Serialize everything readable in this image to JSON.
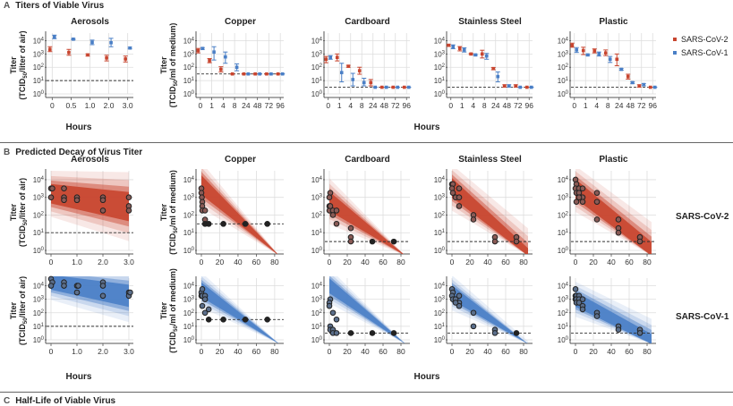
{
  "sections": [
    {
      "letter": "A",
      "title": "Titers of Viable Virus"
    },
    {
      "letter": "B",
      "title": "Predicted Decay of Virus Titer"
    },
    {
      "letter": "C",
      "title": "Half-Life of Viable Virus"
    }
  ],
  "legend": [
    {
      "name": "SARS-CoV-2",
      "color": "#c8452f"
    },
    {
      "name": "SARS-CoV-1",
      "color": "#4a7fc6"
    }
  ],
  "row_labels": [
    "SARS-CoV-2",
    "SARS-CoV-1"
  ],
  "xlabel": "Hours",
  "ytitle_air": "Titer (TCID50/liter of air)",
  "ytitle_medium": "Titer (TCID50/ml of medium)",
  "chart_data": [
    {
      "type": "scatter",
      "panel": "A",
      "title": "Aerosols",
      "xlabel": "Hours",
      "ylabel": "Titer (TCID50/liter of air)",
      "yscale": "log10",
      "ylim": [
        1,
        30000
      ],
      "yticks": [
        "10^0",
        "10^1",
        "10^2",
        "10^3",
        "10^4"
      ],
      "categories": [
        "0",
        "0.5",
        "1.0",
        "2.0",
        "3.0"
      ],
      "detection_limit": 10,
      "series": [
        {
          "name": "SARS-CoV-2",
          "values": [
            2200,
            1300,
            850,
            500,
            420
          ],
          "err_low": [
            1500,
            800,
            700,
            300,
            250
          ],
          "err_high": [
            3500,
            2200,
            1000,
            800,
            700
          ]
        },
        {
          "name": "SARS-CoV-1",
          "values": [
            19000,
            13000,
            7500,
            7000,
            2800
          ],
          "err_low": [
            14000,
            11500,
            5000,
            3500,
            2400
          ],
          "err_high": [
            26000,
            14500,
            11000,
            15000,
            3200
          ]
        }
      ]
    },
    {
      "type": "scatter",
      "panel": "A",
      "title": "Copper",
      "ylabel": "Titer (TCID50/ml of medium)",
      "yscale": "log10",
      "ylim": [
        1,
        30000
      ],
      "yticks": [
        "10^0",
        "10^1",
        "10^2",
        "10^3",
        "10^4"
      ],
      "categories": [
        "0",
        "1",
        "4",
        "8",
        "24",
        "48",
        "72",
        "96"
      ],
      "detection_limit": 31.6,
      "series": [
        {
          "name": "SARS-CoV-2",
          "values": [
            1800,
            320,
            70,
            31.6,
            31.6,
            31.6,
            31.6,
            31.6
          ],
          "err_low": [
            1200,
            220,
            45,
            31.6,
            31.6,
            31.6,
            31.6,
            31.6
          ],
          "err_high": [
            2600,
            450,
            110,
            31.6,
            31.6,
            31.6,
            31.6,
            31.6
          ]
        },
        {
          "name": "SARS-CoV-1",
          "values": [
            2600,
            1400,
            600,
            100,
            31.6,
            31.6,
            31.6,
            31.6
          ],
          "err_low": [
            2200,
            350,
            200,
            55,
            31.6,
            31.6,
            31.6,
            31.6
          ],
          "err_high": [
            3000,
            3500,
            1400,
            180,
            31.6,
            31.6,
            31.6,
            31.6
          ]
        }
      ]
    },
    {
      "type": "scatter",
      "panel": "A",
      "title": "Cardboard",
      "yscale": "log10",
      "ylim": [
        1,
        30000
      ],
      "yticks": [
        "10^0",
        "10^1",
        "10^2",
        "10^3",
        "10^4"
      ],
      "categories": [
        "0",
        "1",
        "4",
        "8",
        "24",
        "48",
        "72",
        "96"
      ],
      "detection_limit": 3.16,
      "series": [
        {
          "name": "SARS-CoV-2",
          "values": [
            400,
            550,
            120,
            55,
            7,
            3.16,
            3.16,
            3.16
          ],
          "err_low": [
            220,
            300,
            100,
            30,
            4,
            3.16,
            3.16,
            3.16
          ],
          "err_high": [
            650,
            1000,
            140,
            100,
            12,
            3.16,
            3.16,
            3.16
          ]
        },
        {
          "name": "SARS-CoV-1",
          "values": [
            550,
            40,
            12,
            7,
            3.16,
            3.16,
            3.16,
            3.16
          ],
          "err_low": [
            400,
            8,
            4,
            4,
            3.16,
            3.16,
            3.16,
            3.16
          ],
          "err_high": [
            750,
            200,
            35,
            15,
            3.16,
            3.16,
            3.16,
            3.16
          ]
        }
      ]
    },
    {
      "type": "scatter",
      "panel": "A",
      "title": "Stainless Steel",
      "yscale": "log10",
      "ylim": [
        1,
        30000
      ],
      "yticks": [
        "10^0",
        "10^1",
        "10^2",
        "10^3",
        "10^4"
      ],
      "categories": [
        "0",
        "1",
        "4",
        "8",
        "24",
        "48",
        "72",
        "96"
      ],
      "detection_limit": 3.16,
      "series": [
        {
          "name": "SARS-CoV-2",
          "values": [
            4500,
            2600,
            1000,
            1000,
            80,
            4,
            4,
            3.16
          ],
          "err_low": [
            3800,
            1700,
            900,
            500,
            65,
            3.2,
            3.2,
            3.16
          ],
          "err_high": [
            5200,
            3600,
            1100,
            1900,
            95,
            4.8,
            4.8,
            3.16
          ]
        },
        {
          "name": "SARS-CoV-1",
          "values": [
            3500,
            2000,
            850,
            700,
            20,
            4,
            3.16,
            3.16
          ],
          "err_low": [
            2500,
            1400,
            750,
            400,
            8,
            3.2,
            3.16,
            3.16
          ],
          "err_high": [
            4800,
            2900,
            950,
            1100,
            45,
            4.8,
            3.16,
            3.16
          ]
        }
      ]
    },
    {
      "type": "scatter",
      "panel": "A",
      "title": "Plastic",
      "yscale": "log10",
      "ylim": [
        1,
        30000
      ],
      "yticks": [
        "10^0",
        "10^1",
        "10^2",
        "10^3",
        "10^4"
      ],
      "categories": [
        "0",
        "1",
        "4",
        "8",
        "24",
        "48",
        "72",
        "96"
      ],
      "detection_limit": 3.16,
      "series": [
        {
          "name": "SARS-CoV-2",
          "values": [
            4500,
            1800,
            1700,
            1200,
            400,
            20,
            4,
            3.16
          ],
          "err_low": [
            3200,
            900,
            1200,
            750,
            130,
            13,
            3.2,
            3.16
          ],
          "err_high": [
            6500,
            3200,
            2400,
            2000,
            1000,
            30,
            4.8,
            3.16
          ]
        },
        {
          "name": "SARS-CoV-1",
          "values": [
            2000,
            850,
            1000,
            400,
            70,
            7,
            5,
            3.16
          ],
          "err_low": [
            1300,
            750,
            700,
            230,
            60,
            6,
            4,
            3.16
          ],
          "err_high": [
            3000,
            950,
            1400,
            650,
            80,
            8,
            6,
            3.16
          ]
        }
      ]
    },
    {
      "type": "scatter",
      "panel": "B",
      "virus": "SARS-CoV-2",
      "title": "Aerosols",
      "ylabel": "Titer (TCID50/liter of air)",
      "yscale": "log10",
      "xlim": [
        0,
        3
      ],
      "xticks": [
        "0",
        "1.0",
        "2.0",
        "3.0"
      ],
      "detection_limit": 10,
      "band": {
        "start": 1600,
        "end": 300
      },
      "points": [
        [
          0,
          3200
        ],
        [
          0.05,
          3200
        ],
        [
          0,
          1000
        ],
        [
          0.5,
          3200
        ],
        [
          0.5,
          1000
        ],
        [
          0.5,
          700
        ],
        [
          1,
          1000
        ],
        [
          1,
          700
        ],
        [
          2,
          1000
        ],
        [
          2,
          700
        ],
        [
          2,
          180
        ],
        [
          3,
          1000
        ],
        [
          3,
          320
        ],
        [
          3,
          180
        ]
      ]
    },
    {
      "type": "scatter",
      "panel": "B",
      "virus": "SARS-CoV-2",
      "title": "Copper",
      "ylabel": "Titer (TCID50/ml of medium)",
      "yscale": "log10",
      "xlim": [
        0,
        85
      ],
      "xticks": [
        "0",
        "20",
        "40",
        "60",
        "80"
      ],
      "detection_limit": 31.6,
      "band": {
        "start": 5000,
        "slope_per_hour": -0.45
      },
      "points": [
        [
          0,
          3200
        ],
        [
          0,
          1800
        ],
        [
          0.5,
          1000
        ],
        [
          1,
          550
        ],
        [
          1,
          320
        ],
        [
          1,
          180
        ],
        [
          4,
          180
        ],
        [
          4,
          55
        ],
        [
          4,
          31.6
        ],
        [
          8,
          31.6
        ],
        [
          24,
          31.6
        ],
        [
          48,
          31.6
        ],
        [
          72,
          31.6
        ]
      ]
    },
    {
      "type": "scatter",
      "panel": "B",
      "virus": "SARS-CoV-2",
      "title": "Cardboard",
      "yscale": "log10",
      "xlim": [
        0,
        85
      ],
      "xticks": [
        "0",
        "20",
        "40",
        "60",
        "80"
      ],
      "detection_limit": 3.16,
      "band": {
        "start": 600,
        "slope_per_hour": -0.075
      },
      "points": [
        [
          1,
          1800
        ],
        [
          0,
          1000
        ],
        [
          0,
          320
        ],
        [
          0,
          180
        ],
        [
          1,
          320
        ],
        [
          4,
          180
        ],
        [
          4,
          100
        ],
        [
          8,
          180
        ],
        [
          8,
          32
        ],
        [
          24,
          18
        ],
        [
          24,
          5.6
        ],
        [
          24,
          3.2
        ],
        [
          48,
          3.16
        ],
        [
          72,
          3.16
        ]
      ]
    },
    {
      "type": "scatter",
      "panel": "B",
      "virus": "SARS-CoV-2",
      "title": "Stainless Steel",
      "yscale": "log10",
      "xlim": [
        0,
        85
      ],
      "xticks": [
        "0",
        "20",
        "40",
        "60",
        "80"
      ],
      "detection_limit": 3.16,
      "band": {
        "start": 3500,
        "slope_per_hour": -0.05
      },
      "points": [
        [
          0,
          5600
        ],
        [
          1,
          5600
        ],
        [
          0,
          3200
        ],
        [
          1,
          1800
        ],
        [
          4,
          1000
        ],
        [
          8,
          3200
        ],
        [
          8,
          1000
        ],
        [
          8,
          320
        ],
        [
          24,
          100
        ],
        [
          24,
          56
        ],
        [
          48,
          5.6
        ],
        [
          48,
          3.2
        ],
        [
          72,
          5.6
        ],
        [
          72,
          3.2
        ]
      ]
    },
    {
      "type": "scatter",
      "panel": "B",
      "virus": "SARS-CoV-2",
      "title": "Plastic",
      "yscale": "log10",
      "xlim": [
        0,
        85
      ],
      "xticks": [
        "0",
        "20",
        "40",
        "60",
        "80"
      ],
      "detection_limit": 3.16,
      "band": {
        "start": 3000,
        "slope_per_hour": -0.045
      },
      "points": [
        [
          0,
          10000
        ],
        [
          1,
          5600
        ],
        [
          0,
          3200
        ],
        [
          1,
          1800
        ],
        [
          4,
          3200
        ],
        [
          4,
          1800
        ],
        [
          8,
          3200
        ],
        [
          8,
          1000
        ],
        [
          1,
          560
        ],
        [
          4,
          1000
        ],
        [
          8,
          560
        ],
        [
          24,
          1800
        ],
        [
          24,
          560
        ],
        [
          24,
          56
        ],
        [
          48,
          56
        ],
        [
          48,
          18
        ],
        [
          48,
          10
        ],
        [
          72,
          5.6
        ],
        [
          72,
          3.2
        ]
      ]
    },
    {
      "type": "scatter",
      "panel": "B",
      "virus": "SARS-CoV-1",
      "title": "Aerosols",
      "yscale": "log10",
      "xlim": [
        0,
        3
      ],
      "xticks": [
        "0",
        "1.0",
        "2.0",
        "3.0"
      ],
      "detection_limit": 10,
      "band": {
        "start": 18000,
        "end": 1800
      },
      "points": [
        [
          0,
          32000
        ],
        [
          0.05,
          18000
        ],
        [
          0,
          10000
        ],
        [
          0.5,
          18000
        ],
        [
          0.5,
          10000
        ],
        [
          1,
          10000
        ],
        [
          1.05,
          10000
        ],
        [
          1,
          3200
        ],
        [
          2,
          18000
        ],
        [
          2,
          10000
        ],
        [
          2,
          1800
        ],
        [
          3,
          3200
        ],
        [
          3,
          1800
        ],
        [
          3.05,
          3200
        ]
      ]
    },
    {
      "type": "scatter",
      "panel": "B",
      "virus": "SARS-CoV-1",
      "title": "Copper",
      "yscale": "log10",
      "xlim": [
        0,
        85
      ],
      "xticks": [
        "0",
        "20",
        "40",
        "60",
        "80"
      ],
      "detection_limit": 31.6,
      "band": {
        "start": 5000,
        "slope_per_hour": -0.3
      },
      "points": [
        [
          0,
          3200
        ],
        [
          1,
          5600
        ],
        [
          0,
          1800
        ],
        [
          1,
          1800
        ],
        [
          4,
          1800
        ],
        [
          4,
          1000
        ],
        [
          1,
          320
        ],
        [
          4,
          100
        ],
        [
          8,
          180
        ],
        [
          8,
          31.6
        ],
        [
          24,
          31.6
        ],
        [
          48,
          31.6
        ],
        [
          72,
          31.6
        ]
      ]
    },
    {
      "type": "scatter",
      "panel": "B",
      "virus": "SARS-CoV-1",
      "title": "Cardboard",
      "yscale": "log10",
      "xlim": [
        0,
        85
      ],
      "xticks": [
        "0",
        "20",
        "40",
        "60",
        "80"
      ],
      "detection_limit": 3.16,
      "band": {
        "start": 10000,
        "slope_per_hour": -0.3
      },
      "points": [
        [
          1,
          1000
        ],
        [
          0,
          560
        ],
        [
          0,
          320
        ],
        [
          4,
          100
        ],
        [
          8,
          32
        ],
        [
          1,
          10
        ],
        [
          1,
          5.6
        ],
        [
          4,
          5.6
        ],
        [
          4,
          3.2
        ],
        [
          8,
          3.2
        ],
        [
          24,
          3.16
        ],
        [
          48,
          3.16
        ],
        [
          72,
          3.16
        ]
      ]
    },
    {
      "type": "scatter",
      "panel": "B",
      "virus": "SARS-CoV-1",
      "title": "Stainless Steel",
      "yscale": "log10",
      "xlim": [
        0,
        85
      ],
      "xticks": [
        "0",
        "20",
        "40",
        "60",
        "80"
      ],
      "detection_limit": 3.16,
      "band": {
        "start": 3000,
        "slope_per_hour": -0.065
      },
      "points": [
        [
          0,
          5600
        ],
        [
          1,
          3200
        ],
        [
          0,
          1800
        ],
        [
          1,
          1000
        ],
        [
          4,
          1000
        ],
        [
          8,
          1800
        ],
        [
          8,
          560
        ],
        [
          8,
          320
        ],
        [
          4,
          560
        ],
        [
          24,
          100
        ],
        [
          24,
          10
        ],
        [
          48,
          5.6
        ],
        [
          48,
          3.2
        ],
        [
          72,
          3.16
        ]
      ]
    },
    {
      "type": "scatter",
      "panel": "B",
      "virus": "SARS-CoV-1",
      "title": "Plastic",
      "yscale": "log10",
      "xlim": [
        0,
        85
      ],
      "xticks": [
        "0",
        "20",
        "40",
        "60",
        "80"
      ],
      "detection_limit": 3.16,
      "band": {
        "start": 1000,
        "slope_per_hour": -0.04
      },
      "points": [
        [
          0,
          5600
        ],
        [
          0,
          1800
        ],
        [
          1,
          1800
        ],
        [
          4,
          1800
        ],
        [
          0,
          1000
        ],
        [
          1,
          1000
        ],
        [
          4,
          1000
        ],
        [
          8,
          1000
        ],
        [
          1,
          560
        ],
        [
          4,
          560
        ],
        [
          8,
          320
        ],
        [
          8,
          180
        ],
        [
          24,
          100
        ],
        [
          24,
          56
        ],
        [
          48,
          10
        ],
        [
          48,
          5.6
        ],
        [
          72,
          5.6
        ],
        [
          72,
          3.2
        ]
      ]
    }
  ]
}
